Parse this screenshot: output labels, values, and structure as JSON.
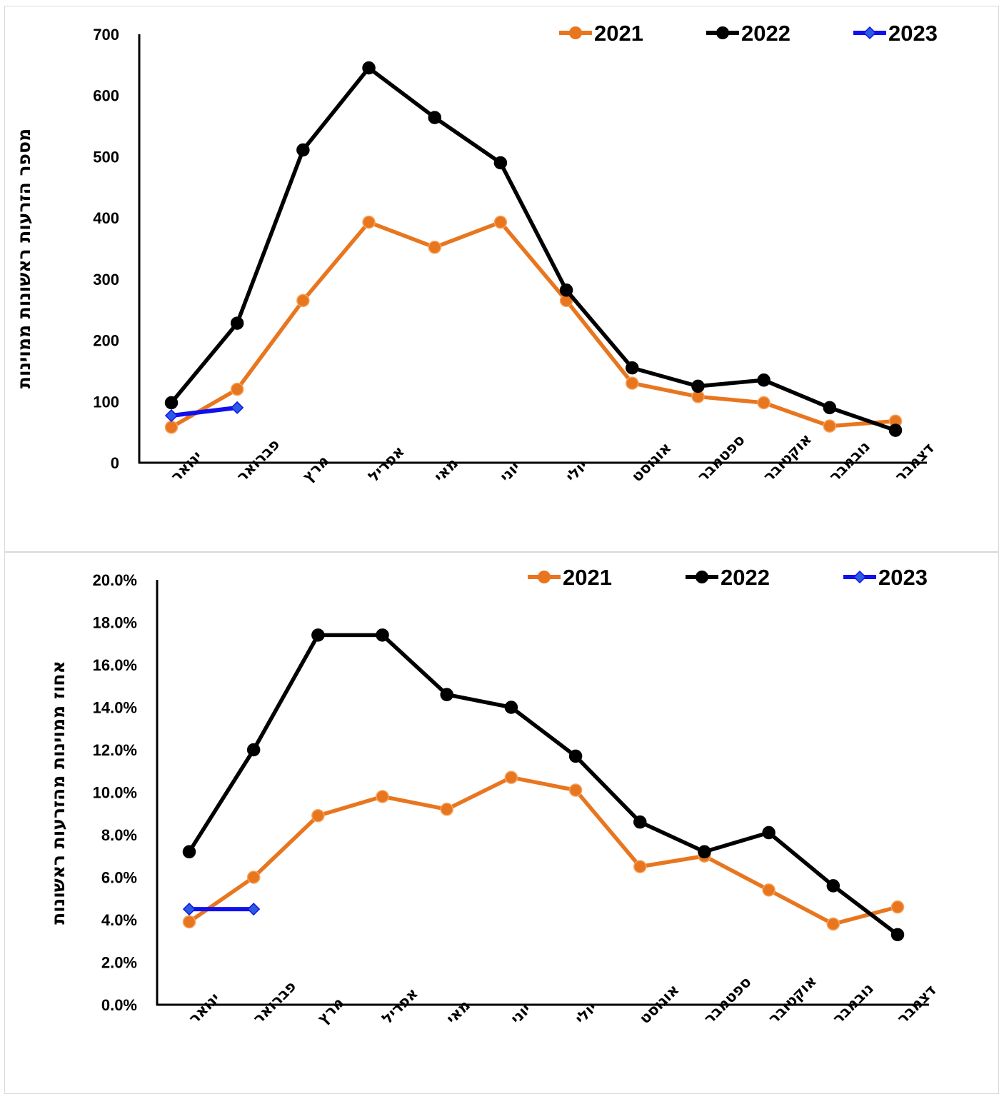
{
  "colors": {
    "2021": "#e8761f",
    "2022": "#000000",
    "2023": "#1010ee",
    "marker_2023": "#2b5be0"
  },
  "chart_data": [
    {
      "type": "line",
      "ylabel": "מספר הזרעות ראשונות ממוינות",
      "ylim": [
        0,
        700
      ],
      "yticks": [
        0,
        100,
        200,
        300,
        400,
        500,
        600,
        700
      ],
      "ytick_labels": [
        "0",
        "100",
        "200",
        "300",
        "400",
        "500",
        "600",
        "700"
      ],
      "categories": [
        "ינואר",
        "פברואר",
        "מרץ",
        "אפריל",
        "מאי",
        "יוני",
        "יולי",
        "אוגוסט",
        "ספטמבר",
        "אוקטובר",
        "נובמבר",
        "דצמבר"
      ],
      "legend_position": "top-right",
      "series": [
        {
          "name": "2021",
          "marker": "circle",
          "values": [
            58,
            120,
            265,
            393,
            352,
            393,
            265,
            130,
            108,
            98,
            60,
            68
          ]
        },
        {
          "name": "2022",
          "marker": "circle",
          "values": [
            98,
            228,
            511,
            645,
            564,
            490,
            282,
            155,
            125,
            135,
            90,
            53
          ]
        },
        {
          "name": "2023",
          "marker": "diamond",
          "values": [
            77,
            90,
            null,
            null,
            null,
            null,
            null,
            null,
            null,
            null,
            null,
            null
          ]
        }
      ]
    },
    {
      "type": "line",
      "ylabel": "אחוז ממוינות מהזרעות ראשונות",
      "ylim": [
        0,
        20
      ],
      "yticks": [
        0,
        2,
        4,
        6,
        8,
        10,
        12,
        14,
        16,
        18,
        20
      ],
      "ytick_labels": [
        "0.0%",
        "2.0%",
        "4.0%",
        "6.0%",
        "8.0%",
        "10.0%",
        "12.0%",
        "14.0%",
        "16.0%",
        "18.0%",
        "20.0%"
      ],
      "categories": [
        "ינואר",
        "פברואר",
        "מרץ",
        "אפריל",
        "מאי",
        "יוני",
        "יולי",
        "אוגוסט",
        "ספטמבר",
        "אוקטובר",
        "נובמבר",
        "דצמבר"
      ],
      "legend_position": "top-right",
      "series": [
        {
          "name": "2021",
          "marker": "circle",
          "values": [
            3.9,
            6.0,
            8.9,
            9.8,
            9.2,
            10.7,
            10.1,
            6.5,
            7.0,
            5.4,
            3.8,
            4.6
          ]
        },
        {
          "name": "2022",
          "marker": "circle",
          "values": [
            7.2,
            12.0,
            17.4,
            17.4,
            14.6,
            14.0,
            11.7,
            8.6,
            7.2,
            8.1,
            5.6,
            3.3
          ]
        },
        {
          "name": "2023",
          "marker": "diamond",
          "values": [
            4.5,
            4.5,
            null,
            null,
            null,
            null,
            null,
            null,
            null,
            null,
            null,
            null
          ]
        }
      ]
    }
  ]
}
